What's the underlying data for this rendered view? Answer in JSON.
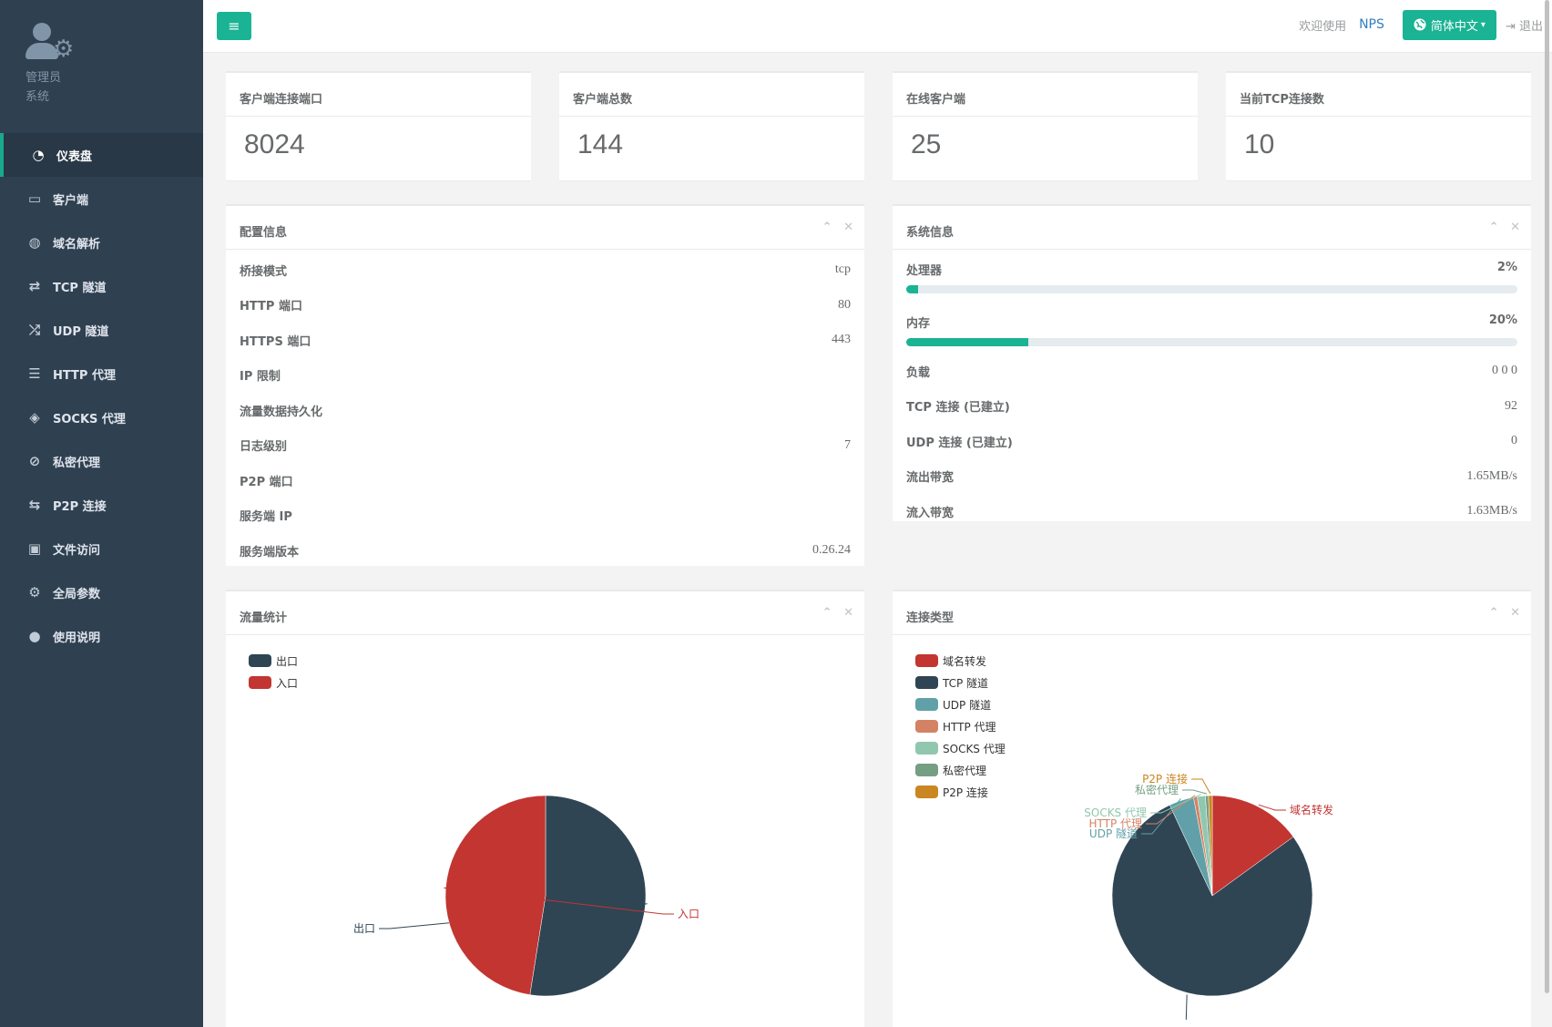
{
  "sidebar": {
    "profile_line1": "管理员",
    "profile_line2": "系统",
    "items": [
      {
        "label": "仪表盘",
        "icon": "dashboard-icon",
        "glyph": "◔"
      },
      {
        "label": "客户端",
        "icon": "desktop-icon",
        "glyph": "▭"
      },
      {
        "label": "域名解析",
        "icon": "globe-icon",
        "glyph": "◍"
      },
      {
        "label": "TCP 隧道",
        "icon": "retweet-icon",
        "glyph": "⇄"
      },
      {
        "label": "UDP 隧道",
        "icon": "random-icon",
        "glyph": "⤮"
      },
      {
        "label": "HTTP 代理",
        "icon": "server-icon",
        "glyph": "☰"
      },
      {
        "label": "SOCKS 代理",
        "icon": "layers-icon",
        "glyph": "◈"
      },
      {
        "label": "私密代理",
        "icon": "eye-slash-icon",
        "glyph": "⊘"
      },
      {
        "label": "P2P 连接",
        "icon": "exchange-icon",
        "glyph": "⇆"
      },
      {
        "label": "文件访问",
        "icon": "briefcase-icon",
        "glyph": "▣"
      },
      {
        "label": "全局参数",
        "icon": "gear-icon",
        "glyph": "⚙"
      },
      {
        "label": "使用说明",
        "icon": "lightbulb-icon",
        "glyph": "●"
      }
    ]
  },
  "topbar": {
    "menu_glyph": "≡",
    "welcome": "欢迎使用",
    "brand": "NPS",
    "lang_label": "简体中文",
    "lang_caret": "▾",
    "logout": "退出",
    "logout_glyph": "⇥"
  },
  "stats": [
    {
      "label": "客户端连接端口",
      "value": "8024"
    },
    {
      "label": "客户端总数",
      "value": "144"
    },
    {
      "label": "在线客户端",
      "value": "25"
    },
    {
      "label": "当前TCP连接数",
      "value": "10"
    }
  ],
  "config": {
    "title": "配置信息",
    "rows": [
      {
        "k": "桥接模式",
        "v": "tcp"
      },
      {
        "k": "HTTP 端口",
        "v": "80"
      },
      {
        "k": "HTTPS 端口",
        "v": "443"
      },
      {
        "k": "IP 限制",
        "v": ""
      },
      {
        "k": "流量数据持久化",
        "v": ""
      },
      {
        "k": "日志级别",
        "v": "7"
      },
      {
        "k": "P2P 端口",
        "v": ""
      },
      {
        "k": "服务端 IP",
        "v": ""
      },
      {
        "k": "服务端版本",
        "v": "0.26.24"
      }
    ]
  },
  "system": {
    "title": "系统信息",
    "cpu_label": "处理器",
    "cpu_text": "2%",
    "cpu_fraction": 0.02,
    "mem_label": "内存",
    "mem_text": "20%",
    "mem_fraction": 0.2,
    "rows": [
      {
        "k": "负载",
        "v": "0   0   0"
      },
      {
        "k": "TCP 连接 (已建立)",
        "v": "92"
      },
      {
        "k": "UDP 连接 (已建立)",
        "v": "0"
      },
      {
        "k": "流出带宽",
        "v": "1.65MB/s"
      },
      {
        "k": "流入带宽",
        "v": "1.63MB/s"
      }
    ]
  },
  "traffic": {
    "title": "流量统计",
    "chart_data": {
      "type": "pie",
      "legend_position": "top-left",
      "categories": [
        "出口",
        "入口"
      ],
      "values": [
        52.5,
        47.5
      ],
      "colors": [
        "#2f4554",
        "#c23531"
      ]
    }
  },
  "conn": {
    "title": "连接类型",
    "chart_data": {
      "type": "pie",
      "legend_position": "top-left",
      "categories": [
        "域名转发",
        "TCP 隧道",
        "UDP 隧道",
        "HTTP 代理",
        "SOCKS 代理",
        "私密代理",
        "P2P 连接"
      ],
      "values": [
        15,
        78,
        4,
        0.6,
        1.3,
        0.5,
        0.6
      ],
      "colors": [
        "#c23531",
        "#2f4554",
        "#61a0a8",
        "#d48265",
        "#91c7ae",
        "#749f83",
        "#ca8622"
      ]
    }
  },
  "tools": {
    "collapse": "⌃",
    "close": "✕"
  }
}
